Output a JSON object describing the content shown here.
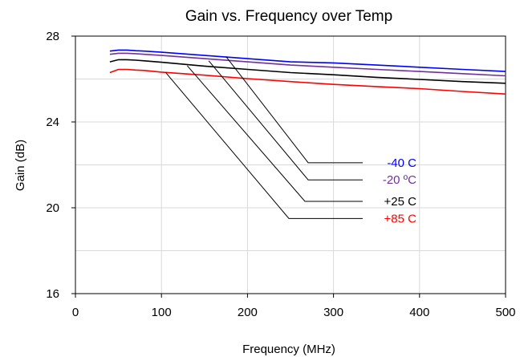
{
  "chart_data": {
    "type": "line",
    "title": "Gain vs. Frequency over Temp",
    "xlabel": "Frequency (MHz)",
    "ylabel": "Gain (dB)",
    "xlim": [
      0,
      500
    ],
    "ylim": [
      16,
      28
    ],
    "x_ticks": [
      0,
      100,
      200,
      300,
      400,
      500
    ],
    "x_tick_labels": [
      "0",
      "100",
      "200",
      "300",
      "400",
      "500"
    ],
    "y_ticks": [
      16,
      20,
      24,
      28
    ],
    "y_tick_labels": [
      "16",
      "20",
      "24",
      "28"
    ],
    "grid": true,
    "series": [
      {
        "name": "-40 C",
        "color": "#0000ff",
        "x": [
          40,
          50,
          60,
          70,
          80,
          100,
          150,
          200,
          250,
          300,
          350,
          400,
          450,
          500
        ],
        "y": [
          27.3,
          27.35,
          27.35,
          27.32,
          27.3,
          27.25,
          27.1,
          26.95,
          26.8,
          26.75,
          26.65,
          26.55,
          26.45,
          26.35
        ]
      },
      {
        "name": "-20 ºC",
        "color": "#7030a0",
        "x": [
          40,
          50,
          60,
          70,
          80,
          100,
          150,
          200,
          250,
          300,
          350,
          400,
          450,
          500
        ],
        "y": [
          27.15,
          27.2,
          27.2,
          27.18,
          27.15,
          27.1,
          26.95,
          26.8,
          26.65,
          26.55,
          26.45,
          26.35,
          26.25,
          26.15
        ]
      },
      {
        "name": "+25 C",
        "color": "#000000",
        "x": [
          40,
          50,
          60,
          70,
          80,
          100,
          150,
          200,
          250,
          300,
          350,
          400,
          450,
          500
        ],
        "y": [
          26.8,
          26.9,
          26.9,
          26.88,
          26.85,
          26.78,
          26.6,
          26.45,
          26.3,
          26.2,
          26.08,
          25.98,
          25.88,
          25.8
        ]
      },
      {
        "name": "+85 C",
        "color": "#ff0000",
        "x": [
          40,
          50,
          60,
          70,
          80,
          100,
          150,
          200,
          250,
          300,
          350,
          400,
          450,
          500
        ],
        "y": [
          26.3,
          26.45,
          26.45,
          26.42,
          26.4,
          26.32,
          26.18,
          26.02,
          25.88,
          25.75,
          25.65,
          25.55,
          25.42,
          25.3
        ]
      }
    ],
    "annotations": [
      {
        "label": "-40 C",
        "color": "#0000ff",
        "point": [
          175,
          27.05
        ],
        "text_y": 22.1
      },
      {
        "label": "-20 ºC",
        "color": "#7030a0",
        "point": [
          155,
          26.85
        ],
        "text_y": 21.3
      },
      {
        "label": "+25 C",
        "color": "#000000",
        "point": [
          130,
          26.62
        ],
        "text_y": 20.3
      },
      {
        "label": "+85 C",
        "color": "#ff0000",
        "point": [
          105,
          26.3
        ],
        "text_y": 19.5
      }
    ]
  }
}
